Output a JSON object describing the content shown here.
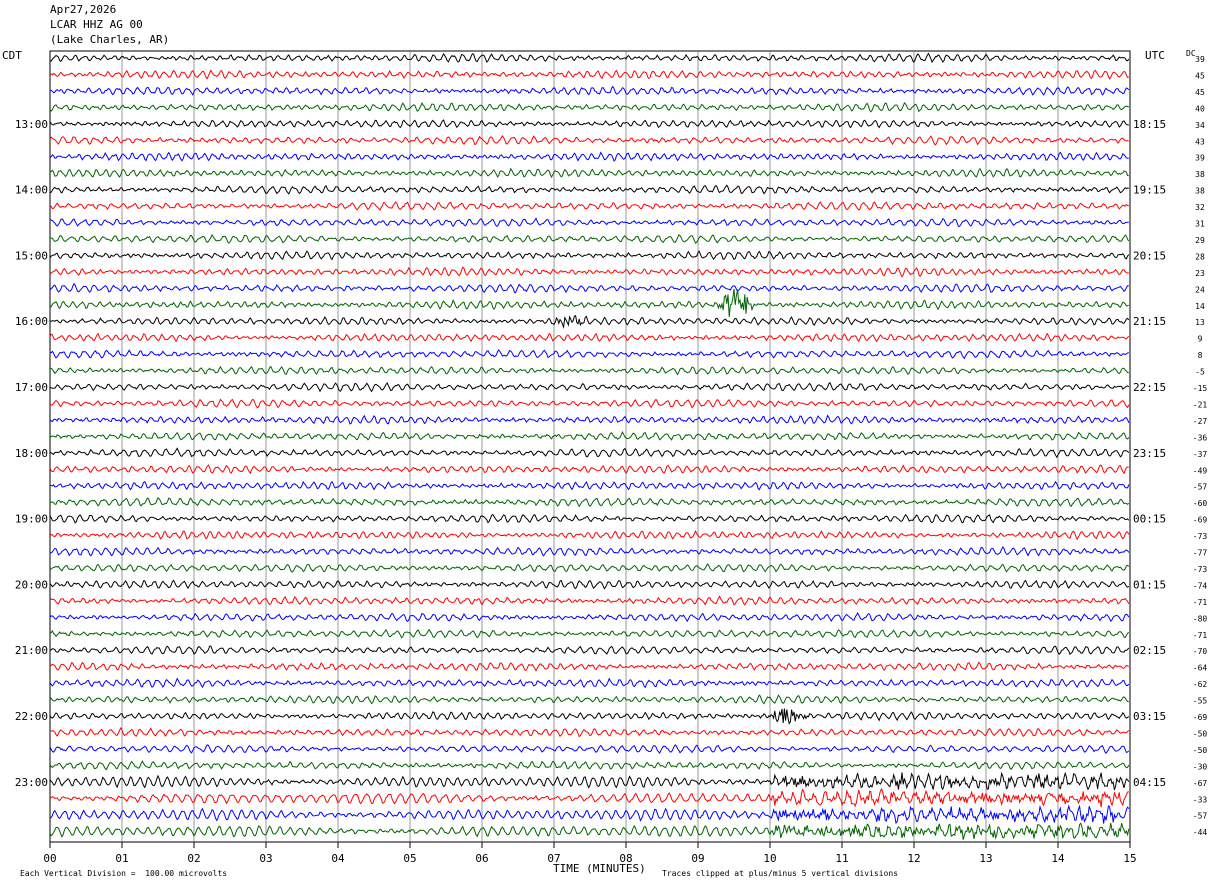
{
  "header": {
    "date": "Apr27,2026",
    "station": "LCAR HHZ AG 00",
    "location": "(Lake Charles, AR)"
  },
  "axes": {
    "left_zone": "CDT",
    "right_zone": "UTC",
    "dc_label": "DC",
    "xlabel": "TIME (MINUTES)",
    "footer_left": "Each Vertical Division =  100.00 microvolts",
    "footer_right": "Traces clipped at plus/minus 5 vertical divisions"
  },
  "chart_data": {
    "type": "line",
    "title": "Apr27,2026 LCAR HHZ AG 00 (Lake Charles, AR)",
    "xlabel": "TIME (MINUTES)",
    "x_ticks": [
      "00",
      "01",
      "02",
      "03",
      "04",
      "05",
      "06",
      "07",
      "08",
      "09",
      "10",
      "11",
      "12",
      "13",
      "14",
      "15"
    ],
    "xlim": [
      0,
      15
    ],
    "minutes_per_trace": 15,
    "grid": true,
    "trace_colors": [
      "#000000",
      "#ff0000",
      "#0000ff",
      "#006400"
    ],
    "left_time_labels": [
      "13:00",
      "14:00",
      "15:00",
      "16:00",
      "17:00",
      "18:00",
      "19:00",
      "20:00",
      "21:00",
      "22:00",
      "23:00"
    ],
    "right_time_labels": [
      "18:15",
      "19:15",
      "20:15",
      "21:15",
      "22:15",
      "23:15",
      "00:15",
      "01:15",
      "02:15",
      "03:15",
      "04:15"
    ],
    "dc_offsets": [
      39,
      45,
      45,
      40,
      34,
      43,
      39,
      38,
      38,
      32,
      31,
      29,
      28,
      23,
      24,
      14,
      13,
      9,
      8,
      -5,
      -15,
      -21,
      -27,
      -36,
      -37,
      -49,
      -57,
      -60,
      -69,
      -73,
      -77,
      -73,
      -74,
      -71,
      -80,
      -71,
      -70,
      -64,
      -62,
      -55,
      -69,
      -50,
      -50,
      -30,
      -67,
      -33,
      -57,
      -44
    ],
    "events": [
      {
        "trace": 15,
        "minute": 9.55,
        "amplitude": 2.5,
        "label": ""
      },
      {
        "trace": 16,
        "minute": 7.2,
        "amplitude": 1.0,
        "label": ""
      },
      {
        "trace": 40,
        "minute": 10.25,
        "amplitude": 1.2,
        "label": ""
      }
    ]
  }
}
